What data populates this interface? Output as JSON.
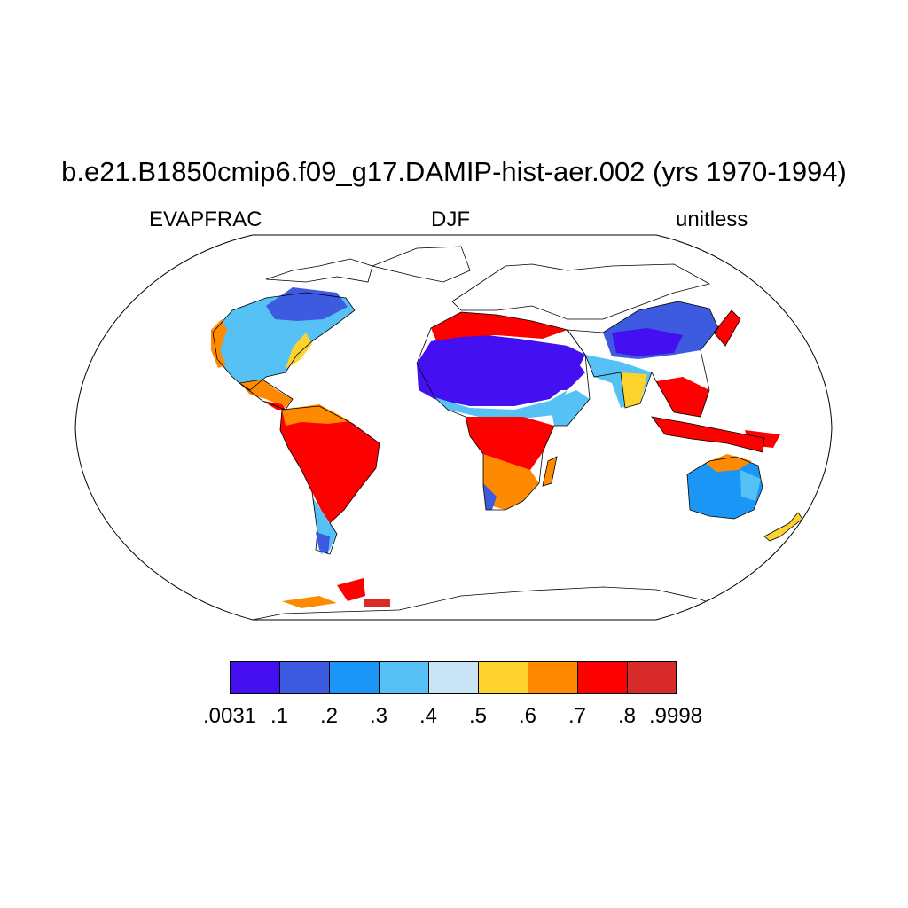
{
  "title": "b.e21.B1850cmip6.f09_g17.DAMIP-hist-aer.002 (yrs 1970-1994)",
  "left_label": "EVAPFRAC",
  "center_label": "DJF",
  "right_label": "unitless",
  "map": {
    "projection": "Robinson",
    "variable": "EVAPFRAC",
    "season": "DJF",
    "missing_fill": "#ffffff",
    "coastline_color": "#000000"
  },
  "colorbar": {
    "colors": [
      "#4410f2",
      "#3c5be0",
      "#1b96f6",
      "#55c1f5",
      "#c8e4f5",
      "#fdd22d",
      "#fd8a00",
      "#fd0000",
      "#d92a2a"
    ],
    "labels": [
      ".0031",
      ".1",
      ".2",
      ".3",
      ".4",
      ".5",
      ".6",
      ".7",
      ".8",
      ".9998"
    ]
  }
}
